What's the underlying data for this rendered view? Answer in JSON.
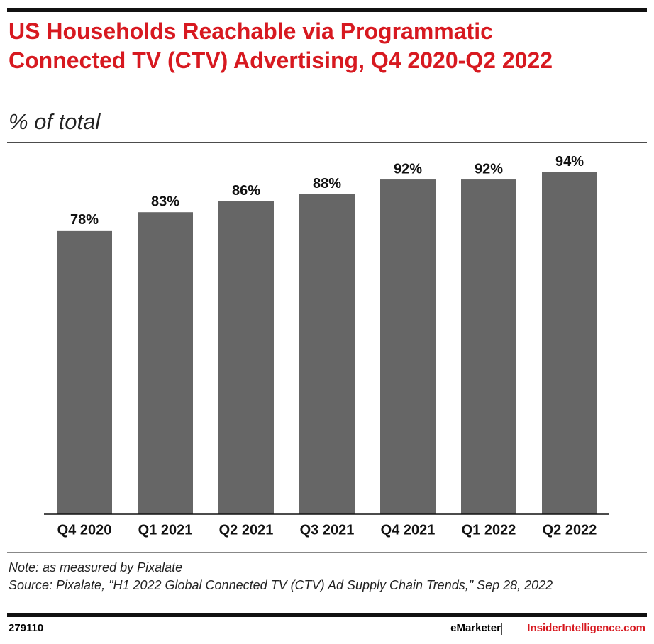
{
  "chart_data": {
    "type": "bar",
    "title": "US Households Reachable via Programmatic Connected TV (CTV) Advertising, Q4 2020-Q2 2022",
    "subtitle": "% of total",
    "categories": [
      "Q4 2020",
      "Q1 2021",
      "Q2 2021",
      "Q3 2021",
      "Q4 2021",
      "Q1 2022",
      "Q2 2022"
    ],
    "values": [
      78,
      83,
      86,
      88,
      92,
      92,
      94
    ],
    "value_labels": [
      "78%",
      "83%",
      "86%",
      "88%",
      "92%",
      "92%",
      "94%"
    ],
    "color": "#666666",
    "note": "Note: as measured by Pixalate",
    "source": "Source: Pixalate, \"H1 2022 Global Connected TV (CTV) Ad Supply Chain Trends,\" Sep 28, 2022",
    "chart_id": "279110",
    "brand": "eMarketer",
    "site": "InsiderIntelligence.com"
  }
}
